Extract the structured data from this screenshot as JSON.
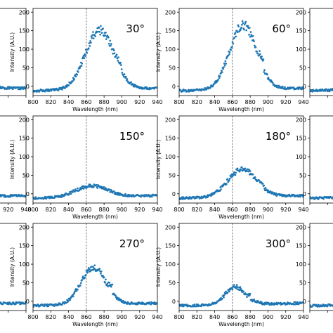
{
  "chart_data": {
    "type": "scatter",
    "point_color": "#1f77b4",
    "marker_line_x": 860,
    "shared_x_ticks": [
      800,
      820,
      840,
      860,
      880,
      900,
      920,
      940
    ],
    "shared_y_ticks": [
      0,
      50,
      100,
      150,
      200
    ],
    "xlim": [
      800,
      940
    ],
    "ylim": [
      -25,
      210
    ],
    "panels": [
      {
        "id": "p0",
        "row": 0,
        "col": 0,
        "label": "",
        "xlabel": "",
        "ylabel": "",
        "show_x_ticks": false,
        "peak": 50,
        "center": 870,
        "width": 18
      },
      {
        "id": "p1",
        "row": 0,
        "col": 1,
        "label": "30°",
        "xlabel": "Wavelength (nm)",
        "ylabel": "Intensity (A.U.)",
        "show_x_ticks": true,
        "peak": 160,
        "center": 875,
        "width": 16
      },
      {
        "id": "p2",
        "row": 0,
        "col": 2,
        "label": "60°",
        "xlabel": "Wavelength (nm)",
        "ylabel": "Intensity (A.U.)",
        "show_x_ticks": true,
        "peak": 175,
        "center": 872,
        "width": 15
      },
      {
        "id": "p3",
        "row": 0,
        "col": 3,
        "label": "",
        "xlabel": "",
        "ylabel": "",
        "show_x_ticks": false,
        "peak": 40,
        "center": 870,
        "width": 16
      },
      {
        "id": "p4",
        "row": 1,
        "col": 0,
        "label": "",
        "xlabel": "",
        "ylabel": "",
        "show_x_ticks": true,
        "peak": 20,
        "center": 870,
        "width": 16
      },
      {
        "id": "p5",
        "row": 1,
        "col": 1,
        "label": "150°",
        "xlabel": "Wavelength (nm)",
        "ylabel": "Intensity (A.U.)",
        "show_x_ticks": true,
        "peak": 30,
        "center": 866,
        "width": 18
      },
      {
        "id": "p6",
        "row": 1,
        "col": 2,
        "label": "180°",
        "xlabel": "Wavelength (nm)",
        "ylabel": "Intensity (A.U.)",
        "show_x_ticks": true,
        "peak": 75,
        "center": 871,
        "width": 16
      },
      {
        "id": "p7",
        "row": 1,
        "col": 3,
        "label": "",
        "xlabel": "",
        "ylabel": "",
        "show_x_ticks": false,
        "peak": 30,
        "center": 870,
        "width": 16
      },
      {
        "id": "p8",
        "row": 2,
        "col": 0,
        "label": "",
        "xlabel": "",
        "ylabel": "",
        "show_x_ticks": false,
        "peak": 30,
        "center": 870,
        "width": 16
      },
      {
        "id": "p9",
        "row": 2,
        "col": 1,
        "label": "270°",
        "xlabel": "Wavelength (nm)",
        "ylabel": "Intensity (A.U.)",
        "show_x_ticks": true,
        "peak": 100,
        "center": 868,
        "width": 14
      },
      {
        "id": "p10",
        "row": 2,
        "col": 2,
        "label": "300°",
        "xlabel": "Wavelength (nm)",
        "ylabel": "Intensity (A.U.)",
        "show_x_ticks": true,
        "peak": 48,
        "center": 863,
        "width": 11
      },
      {
        "id": "p11",
        "row": 2,
        "col": 3,
        "label": "",
        "xlabel": "",
        "ylabel": "",
        "show_x_ticks": false,
        "peak": 30,
        "center": 870,
        "width": 16
      }
    ]
  }
}
